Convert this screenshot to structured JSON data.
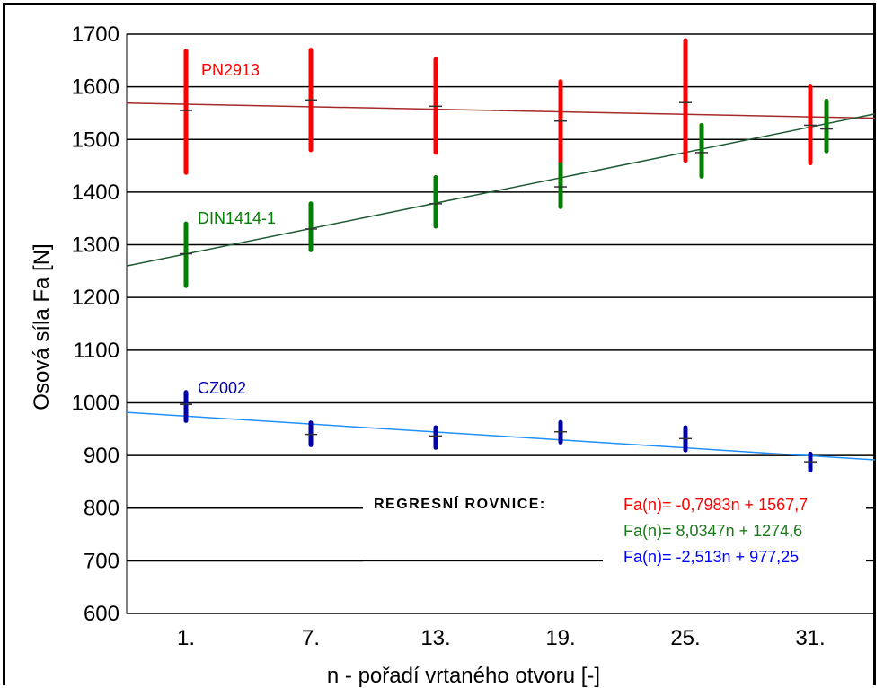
{
  "chart_data": {
    "type": "scatter",
    "title": "",
    "xlabel": "n - pořadí vrtaného otvoru [-]",
    "ylabel": "Osová síla Fa [N]",
    "categories": [
      "1.",
      "7.",
      "13.",
      "19.",
      "25.",
      "31."
    ],
    "ylim": [
      600,
      1700
    ],
    "yticks": [
      600,
      700,
      800,
      900,
      1000,
      1100,
      1200,
      1300,
      1400,
      1500,
      1600,
      1700
    ],
    "grid": "horizontal",
    "series": [
      {
        "name": "PN2913",
        "color": "#ff0000",
        "fit_color": "#a52a2a",
        "means": [
          1555,
          1575,
          1563,
          1535,
          1570,
          1527
        ],
        "ranges": [
          [
            1437,
            1668
          ],
          [
            1480,
            1670
          ],
          [
            1475,
            1652
          ],
          [
            1455,
            1610
          ],
          [
            1460,
            1688
          ],
          [
            1455,
            1600
          ]
        ],
        "equation": "Fa(n)= -0,7983n + 1567,7"
      },
      {
        "name": "DIN1414-1",
        "color": "#008000",
        "fit_color": "#1e5a32",
        "means": [
          1283,
          1330,
          1378,
          1410,
          1475,
          1520
        ],
        "ranges": [
          [
            1222,
            1340
          ],
          [
            1290,
            1378
          ],
          [
            1335,
            1428
          ],
          [
            1372,
            1453
          ],
          [
            1430,
            1527
          ],
          [
            1478,
            1573
          ]
        ],
        "equation": "Fa(n)= 8,0347n + 1274,6"
      },
      {
        "name": "CZ002",
        "color": "#0000aa",
        "fit_color": "#1e90ff",
        "means": [
          997,
          940,
          937,
          945,
          932,
          888
        ],
        "ranges": [
          [
            966,
            1020
          ],
          [
            920,
            962
          ],
          [
            915,
            953
          ],
          [
            925,
            963
          ],
          [
            910,
            953
          ],
          [
            872,
            903
          ]
        ],
        "equation": "Fa(n)= -2,513n + 977,25"
      }
    ],
    "equations_title": "REGRESNÍ ROVNICE:"
  }
}
